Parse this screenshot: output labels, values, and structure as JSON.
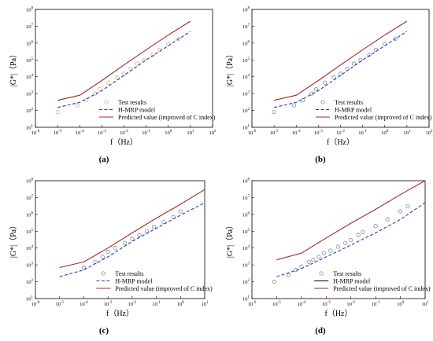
{
  "colors": {
    "predicted": "#a52a2a",
    "hmrp": "#1f3bd6",
    "test_a": "#d9a066",
    "test_other": "#777777",
    "axis": "#000000"
  },
  "chart_data": [
    {
      "panel": "(a)",
      "type": "line",
      "xscale": "log",
      "yscale": "log",
      "xlim": [
        1e-06,
        100
      ],
      "ylim": [
        10,
        100000000.0
      ],
      "xlabel": "f（Hz）",
      "ylabel": "|G*|（Pa）",
      "xticks": [
        "10-6",
        "10-5",
        "10-4",
        "10-3",
        "10-2",
        "10-1",
        "100",
        "101",
        "102"
      ],
      "yticks": [
        "101",
        "102",
        "103",
        "104",
        "105",
        "106",
        "107",
        "108"
      ],
      "legend_position": "bottom-right",
      "series": [
        {
          "name": "Test results",
          "kind": "scatter",
          "color": "test_a",
          "x": [
            1e-05,
            8e-05,
            0.0002,
            0.0005,
            0.0008,
            0.002,
            0.005,
            0.01,
            0.02,
            0.04,
            0.08,
            0.2,
            0.4,
            1,
            3
          ],
          "y": [
            80,
            200,
            400,
            1000,
            1800,
            4500,
            9000,
            15000,
            30000,
            60000,
            100000,
            200000,
            400000,
            900000,
            1800000
          ]
        },
        {
          "name": "H-MRP model",
          "kind": "line",
          "dash": true,
          "color": "hmrp",
          "x": [
            1e-05,
            0.0001,
            0.001,
            0.01,
            0.1,
            1,
            10
          ],
          "y": [
            150,
            300,
            1500,
            12000,
            100000,
            700000,
            5000000
          ]
        },
        {
          "name": "Predicted value (improved of C index)",
          "kind": "line",
          "color": "predicted",
          "x": [
            1e-05,
            0.0001,
            0.001,
            0.01,
            0.1,
            1,
            10
          ],
          "y": [
            400,
            800,
            6000,
            50000,
            400000,
            3000000,
            20000000
          ]
        }
      ]
    },
    {
      "panel": "(b)",
      "type": "line",
      "xscale": "log",
      "yscale": "log",
      "xlim": [
        1e-06,
        100
      ],
      "ylim": [
        10,
        100000000.0
      ],
      "xlabel": "f（Hz）",
      "ylabel": "|G*|（Pa）",
      "xticks": [
        "10-6",
        "10-5",
        "10-4",
        "10-3",
        "10-2",
        "10-1",
        "100",
        "101",
        "102"
      ],
      "yticks": [
        "101",
        "102",
        "103",
        "104",
        "105",
        "106",
        "107",
        "108"
      ],
      "legend_position": "bottom-right",
      "series": [
        {
          "name": "Test results",
          "kind": "scatter",
          "color": "test_other",
          "x": [
            1e-05,
            8e-05,
            0.0002,
            0.0005,
            0.0008,
            0.002,
            0.005,
            0.01,
            0.02,
            0.04,
            0.08,
            0.2,
            0.4,
            1,
            3
          ],
          "y": [
            80,
            200,
            400,
            1000,
            1800,
            4500,
            9000,
            15000,
            30000,
            60000,
            100000,
            200000,
            400000,
            900000,
            1800000
          ]
        },
        {
          "name": "H-MRP model",
          "kind": "line",
          "dash": true,
          "color": "hmrp",
          "x": [
            1e-05,
            0.0001,
            0.001,
            0.01,
            0.1,
            1,
            10
          ],
          "y": [
            150,
            300,
            1500,
            12000,
            100000,
            700000,
            5000000
          ]
        },
        {
          "name": "Predicted value (improved of C index)",
          "kind": "line",
          "color": "predicted",
          "x": [
            1e-05,
            0.0001,
            0.001,
            0.01,
            0.1,
            1,
            10
          ],
          "y": [
            400,
            800,
            6000,
            50000,
            400000,
            3000000,
            20000000
          ]
        }
      ]
    },
    {
      "panel": "(c)",
      "type": "line",
      "xscale": "log",
      "yscale": "log",
      "xlim": [
        1e-06,
        10
      ],
      "ylim": [
        10,
        100000000.0
      ],
      "xlabel": "f（Hz）",
      "ylabel": "|G*|（Pa）",
      "xticks": [
        "10-6",
        "10-5",
        "10-4",
        "10-3",
        "10-2",
        "10-1",
        "100",
        "101"
      ],
      "yticks": [
        "101",
        "102",
        "103",
        "104",
        "105",
        "106",
        "107",
        "108"
      ],
      "legend_position": "bottom-right",
      "series": [
        {
          "name": "Test results",
          "kind": "scatter",
          "color": "test_other",
          "x": [
            0.0001,
            0.0003,
            0.0006,
            0.001,
            0.002,
            0.005,
            0.01,
            0.02,
            0.04,
            0.08,
            0.2,
            0.5,
            1
          ],
          "y": [
            700,
            1500,
            3000,
            6000,
            10000,
            20000,
            35000,
            60000,
            100000,
            180000,
            350000,
            700000,
            1500000
          ]
        },
        {
          "name": "H-MRP model",
          "kind": "line",
          "dash": true,
          "color": "hmrp",
          "x": [
            1e-05,
            0.0001,
            0.001,
            0.01,
            0.1,
            1,
            10
          ],
          "y": [
            200,
            500,
            3000,
            25000,
            150000,
            900000,
            5000000
          ]
        },
        {
          "name": "Predicted value (improved of C index)",
          "kind": "line",
          "color": "predicted",
          "x": [
            1e-05,
            0.0001,
            0.001,
            0.01,
            0.1,
            1,
            10
          ],
          "y": [
            700,
            1500,
            10000,
            80000,
            600000,
            4000000,
            30000000
          ]
        }
      ]
    },
    {
      "panel": "(d)",
      "type": "line",
      "xscale": "log",
      "yscale": "log",
      "xlim": [
        1e-06,
        10
      ],
      "ylim": [
        10,
        100000000.0
      ],
      "xlabel": "f（Hz）",
      "ylabel": "|G*|（Pa）",
      "xticks": [
        "10-6",
        "10-5",
        "10-4",
        "10-3",
        "10-2",
        "10-1",
        "100",
        "101"
      ],
      "yticks": [
        "101",
        "102",
        "103",
        "104",
        "105",
        "106",
        "107",
        "108"
      ],
      "legend_position": "bottom-right",
      "series": [
        {
          "name": "Test results",
          "kind": "scatter",
          "color": "test_other",
          "x": [
            8e-06,
            3e-05,
            6e-05,
            0.0001,
            0.0002,
            0.0003,
            0.0005,
            0.0008,
            0.0015,
            0.003,
            0.006,
            0.01,
            0.02,
            0.03,
            0.1,
            0.3,
            1,
            2
          ],
          "y": [
            100,
            250,
            500,
            800,
            1500,
            2000,
            3000,
            5000,
            7000,
            12000,
            20000,
            30000,
            60000,
            90000,
            200000,
            500000,
            1500000,
            3000000
          ]
        },
        {
          "name": "H-MRP model",
          "kind": "line",
          "color": "axis",
          "legend_only": true,
          "x": [],
          "y": []
        },
        {
          "name": "Predicted value (improved of C index)",
          "kind": "line",
          "color": "predicted",
          "x": [
            1e-05,
            0.0001,
            0.001,
            0.01,
            0.1,
            1,
            10
          ],
          "y": [
            2000,
            5000,
            40000,
            300000,
            2000000,
            15000000,
            100000000
          ]
        },
        {
          "name": "H-MRP model (blue)",
          "kind": "line",
          "dash": true,
          "color": "hmrp",
          "hide_legend": true,
          "x": [
            1e-05,
            0.0001,
            0.001,
            0.01,
            0.1,
            1,
            10
          ],
          "y": [
            200,
            600,
            3000,
            15000,
            80000,
            500000,
            5000000
          ]
        }
      ]
    }
  ]
}
